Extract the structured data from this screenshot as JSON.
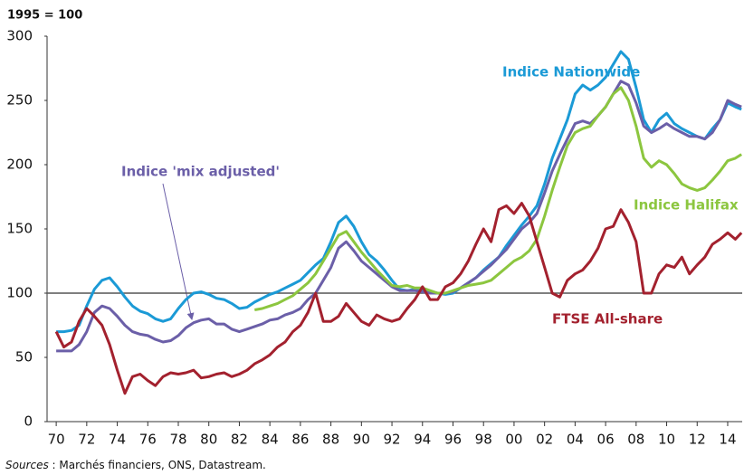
{
  "chart_data": {
    "type": "line",
    "title": "1995 = 100",
    "source": {
      "prefix": "Sources",
      "text": " : Marchés financiers, ONS, Datastream."
    },
    "x": [
      1970,
      1970.5,
      1971,
      1971.5,
      1972,
      1972.5,
      1973,
      1973.5,
      1974,
      1974.5,
      1975,
      1975.5,
      1976,
      1976.5,
      1977,
      1977.5,
      1978,
      1978.5,
      1979,
      1979.5,
      1980,
      1980.5,
      1981,
      1981.5,
      1982,
      1982.5,
      1983,
      1983.5,
      1984,
      1984.5,
      1985,
      1985.5,
      1986,
      1986.5,
      1987,
      1987.5,
      1988,
      1988.5,
      1989,
      1989.5,
      1990,
      1990.5,
      1991,
      1991.5,
      1992,
      1992.5,
      1993,
      1993.5,
      1994,
      1994.5,
      1995,
      1995.5,
      1996,
      1996.5,
      1997,
      1997.5,
      1998,
      1998.5,
      1999,
      1999.5,
      2000,
      2000.5,
      2001,
      2001.5,
      2002,
      2002.5,
      2003,
      2003.5,
      2004,
      2004.5,
      2005,
      2005.5,
      2006,
      2006.5,
      2007,
      2007.5,
      2008,
      2008.5,
      2009,
      2009.5,
      2010,
      2010.5,
      2011,
      2011.5,
      2012,
      2012.5,
      2013,
      2013.5,
      2014,
      2014.5,
      2014.9
    ],
    "series": [
      {
        "name": "Indice Nationwide",
        "color": "#1b9ad6",
        "values": [
          70,
          70,
          71,
          75,
          90,
          103,
          110,
          112,
          105,
          97,
          90,
          86,
          84,
          80,
          78,
          80,
          88,
          95,
          100,
          101,
          99,
          96,
          95,
          92,
          88,
          89,
          93,
          96,
          99,
          101,
          104,
          107,
          110,
          116,
          122,
          127,
          140,
          155,
          160,
          152,
          140,
          130,
          125,
          118,
          110,
          103,
          102,
          103,
          102,
          101,
          100,
          99,
          100,
          104,
          108,
          112,
          118,
          123,
          128,
          137,
          145,
          153,
          160,
          168,
          185,
          205,
          220,
          235,
          255,
          262,
          258,
          262,
          268,
          278,
          288,
          282,
          260,
          235,
          225,
          235,
          240,
          232,
          228,
          225,
          222,
          220,
          228,
          235,
          248,
          245,
          243
        ]
      },
      {
        "name": "Indice 'mix adjusted'",
        "color": "#6b5fa8",
        "values": [
          55,
          55,
          55,
          60,
          70,
          85,
          90,
          88,
          82,
          75,
          70,
          68,
          67,
          64,
          62,
          63,
          67,
          73,
          77,
          79,
          80,
          76,
          76,
          72,
          70,
          72,
          74,
          76,
          79,
          80,
          83,
          85,
          88,
          95,
          100,
          110,
          120,
          135,
          140,
          133,
          125,
          120,
          115,
          110,
          105,
          102,
          102,
          102,
          101,
          100,
          100,
          100,
          101,
          104,
          108,
          112,
          117,
          122,
          128,
          134,
          142,
          150,
          155,
          162,
          178,
          195,
          208,
          220,
          232,
          234,
          232,
          238,
          245,
          255,
          265,
          262,
          248,
          230,
          225,
          228,
          232,
          228,
          225,
          222,
          222,
          220,
          225,
          235,
          250,
          247,
          245
        ]
      },
      {
        "name": "Indice Halifax",
        "color": "#8cc63f",
        "values": [
          null,
          null,
          null,
          null,
          null,
          null,
          null,
          null,
          null,
          null,
          null,
          null,
          null,
          null,
          null,
          null,
          null,
          null,
          null,
          null,
          null,
          null,
          null,
          null,
          null,
          null,
          87,
          88,
          90,
          92,
          95,
          98,
          103,
          108,
          115,
          125,
          135,
          145,
          148,
          140,
          132,
          125,
          118,
          112,
          106,
          105,
          106,
          104,
          104,
          102,
          100,
          100,
          102,
          104,
          106,
          107,
          108,
          110,
          115,
          120,
          125,
          128,
          133,
          142,
          160,
          180,
          198,
          215,
          225,
          228,
          230,
          238,
          245,
          255,
          260,
          250,
          230,
          205,
          198,
          203,
          200,
          193,
          185,
          182,
          180,
          182,
          188,
          195,
          203,
          205,
          208
        ]
      },
      {
        "name": "FTSE All-share",
        "color": "#a3212e",
        "values": [
          70,
          58,
          62,
          78,
          88,
          82,
          75,
          60,
          40,
          22,
          35,
          37,
          32,
          28,
          35,
          38,
          37,
          38,
          40,
          34,
          35,
          37,
          38,
          35,
          37,
          40,
          45,
          48,
          52,
          58,
          62,
          70,
          75,
          85,
          100,
          78,
          78,
          82,
          92,
          85,
          78,
          75,
          83,
          80,
          78,
          80,
          88,
          95,
          105,
          95,
          95,
          105,
          108,
          115,
          125,
          138,
          150,
          140,
          165,
          168,
          162,
          170,
          160,
          140,
          120,
          100,
          97,
          110,
          115,
          118,
          125,
          135,
          150,
          152,
          165,
          155,
          140,
          100,
          100,
          115,
          122,
          120,
          128,
          115,
          122,
          128,
          138,
          142,
          147,
          142,
          147
        ]
      }
    ],
    "reference_line": 100,
    "xlim": [
      1969.4,
      2014.95
    ],
    "ylim": [
      0,
      300
    ],
    "yticks": [
      0,
      50,
      100,
      150,
      200,
      250,
      300
    ],
    "xticks": [
      {
        "value": 1970,
        "label": "70"
      },
      {
        "value": 1972,
        "label": "72"
      },
      {
        "value": 1974,
        "label": "74"
      },
      {
        "value": 1976,
        "label": "76"
      },
      {
        "value": 1978,
        "label": "78"
      },
      {
        "value": 1980,
        "label": "80"
      },
      {
        "value": 1982,
        "label": "82"
      },
      {
        "value": 1984,
        "label": "84"
      },
      {
        "value": 1986,
        "label": "86"
      },
      {
        "value": 1988,
        "label": "88"
      },
      {
        "value": 1990,
        "label": "90"
      },
      {
        "value": 1992,
        "label": "92"
      },
      {
        "value": 1994,
        "label": "94"
      },
      {
        "value": 1996,
        "label": "96"
      },
      {
        "value": 1998,
        "label": "98"
      },
      {
        "value": 2000,
        "label": "00"
      },
      {
        "value": 2002,
        "label": "02"
      },
      {
        "value": 2004,
        "label": "04"
      },
      {
        "value": 2006,
        "label": "06"
      },
      {
        "value": 2008,
        "label": "08"
      },
      {
        "value": 2010,
        "label": "10"
      },
      {
        "value": 2012,
        "label": "12"
      },
      {
        "value": 2014,
        "label": "14"
      }
    ],
    "grid": false
  }
}
